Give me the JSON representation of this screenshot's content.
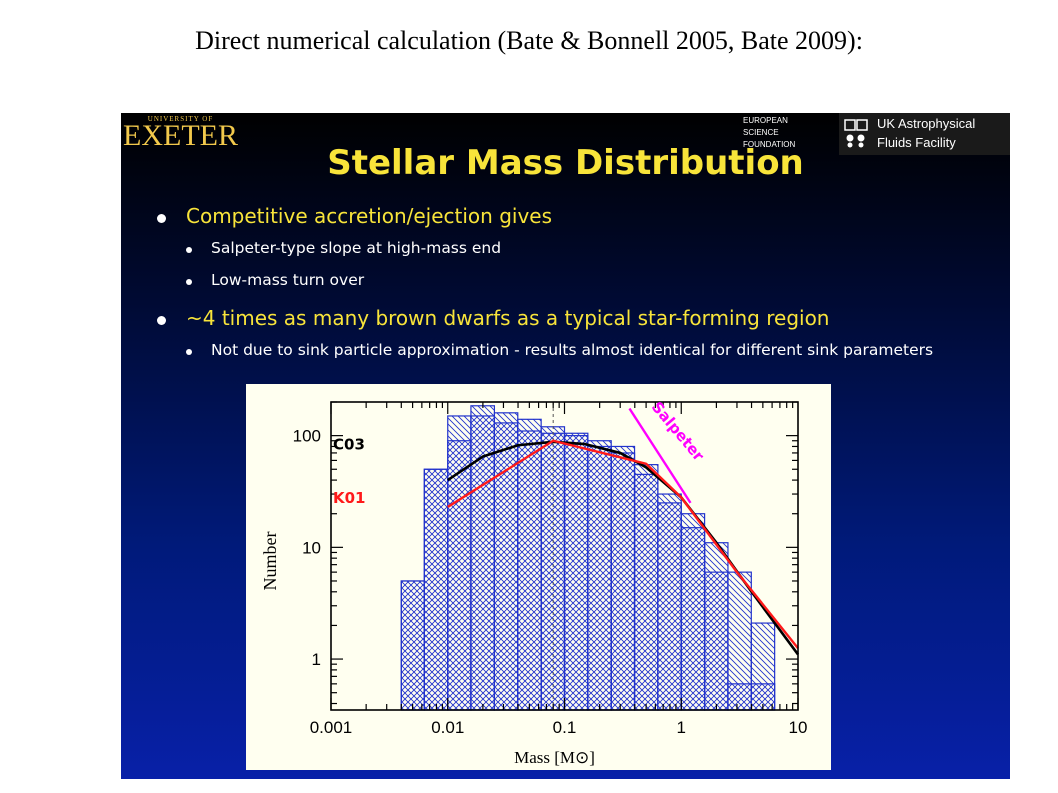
{
  "caption": "Direct numerical calculation (Bate & Bonnell 2005, Bate 2009):",
  "slide": {
    "logo_exeter": {
      "small": "UNIVERSITY OF",
      "big": "EXETER"
    },
    "logo_esf": [
      "EUROPEAN",
      "SCIENCE",
      "FOUNDATION"
    ],
    "logo_ukafe": [
      "UK Astrophysical",
      "Fluids Facility"
    ],
    "title": "Stellar Mass Distribution",
    "bullets": [
      {
        "text": "Competitive accretion/ejection gives",
        "sub": [
          "Salpeter-type slope at high-mass end",
          "Low-mass turn over"
        ]
      },
      {
        "text": "~4 times as many brown dwarfs as a typical star-forming region",
        "sub": [
          "Not due to sink particle approximation - results almost identical for different sink parameters"
        ]
      }
    ]
  },
  "colors": {
    "histogram": "#2233cc",
    "histogram_fill": "#c8ccff",
    "c03": "#000000",
    "k01": "#ff1a1a",
    "salpeter": "#ff00ff",
    "title": "#f8e43a"
  },
  "chart_data": {
    "type": "bar",
    "subtype": "histogram",
    "x_scale": "log",
    "y_scale": "log",
    "xlabel": "Mass [M⊙]",
    "ylabel": "Number",
    "xlim": [
      0.001,
      10
    ],
    "ylim": [
      0.35,
      200
    ],
    "x_ticks": [
      "0.001",
      "0.01",
      "0.1",
      "1",
      "10"
    ],
    "y_ticks": [
      "1",
      "10",
      "100"
    ],
    "bin_edges": [
      0.004,
      0.0063,
      0.01,
      0.0158,
      0.0251,
      0.0398,
      0.0631,
      0.1,
      0.1585,
      0.2512,
      0.3981,
      0.631,
      1.0,
      1.5849,
      2.5119,
      3.9811,
      6.3096
    ],
    "series": [
      {
        "values": [
          5,
          50,
          90,
          150,
          130,
          110,
          105,
          100,
          80,
          70,
          45,
          25,
          15,
          6,
          0.6,
          0.6
        ]
      },
      {
        "values": [
          5,
          50,
          150,
          185,
          160,
          140,
          120,
          105,
          90,
          80,
          55,
          30,
          20,
          11,
          6,
          2.1
        ]
      }
    ],
    "curves": [
      {
        "name": "C03",
        "points": [
          [
            0.01,
            40
          ],
          [
            0.02,
            65
          ],
          [
            0.04,
            82
          ],
          [
            0.08,
            88
          ],
          [
            0.15,
            84
          ],
          [
            0.3,
            70
          ],
          [
            0.5,
            52
          ],
          [
            1,
            28
          ],
          [
            2,
            11
          ],
          [
            4,
            4
          ],
          [
            10,
            1.1
          ]
        ]
      },
      {
        "name": "K01",
        "points": [
          [
            0.01,
            23
          ],
          [
            0.08,
            90
          ],
          [
            0.5,
            56
          ],
          [
            1,
            28
          ],
          [
            3,
            6
          ],
          [
            10,
            1.25
          ]
        ]
      },
      {
        "name": "Salpeter",
        "points": [
          [
            0.36,
            175
          ],
          [
            1.2,
            25
          ]
        ]
      }
    ],
    "reference_line_x": 0.08
  }
}
